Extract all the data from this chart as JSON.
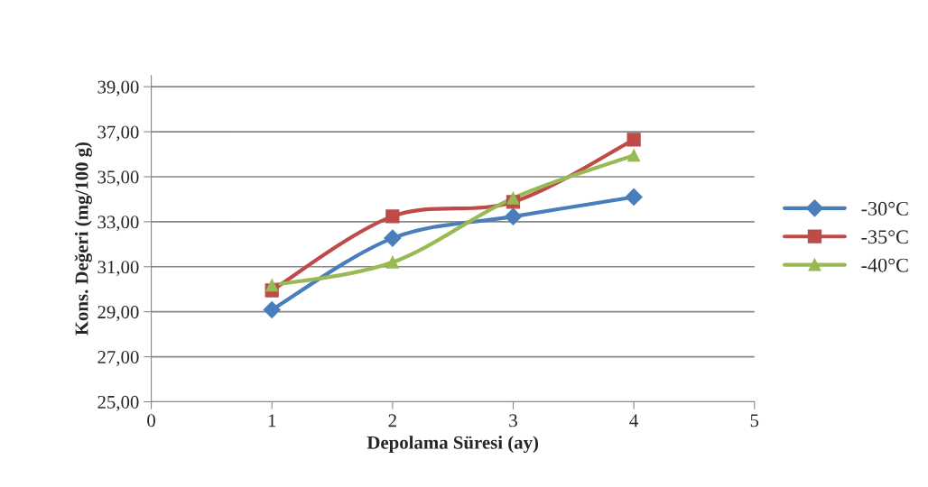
{
  "chart_data": {
    "type": "line",
    "xlabel": "Depolama Süresi (ay)",
    "ylabel": "Kons. Değeri (mg/100 g)",
    "x": [
      1,
      2,
      3,
      4
    ],
    "series": [
      {
        "name": "-30°C",
        "color": "#4a7ebb",
        "marker": "diamond",
        "values": [
          29.09,
          32.27,
          33.23,
          34.1
        ]
      },
      {
        "name": "-35°C",
        "color": "#be4b48",
        "marker": "square",
        "values": [
          29.95,
          33.24,
          33.88,
          36.65
        ]
      },
      {
        "name": "-40°C",
        "color": "#98b954",
        "marker": "triangle",
        "values": [
          30.18,
          31.2,
          34.05,
          35.95
        ]
      }
    ],
    "xlim": [
      0,
      5
    ],
    "xticks": [
      0,
      1,
      2,
      3,
      4,
      5
    ],
    "ylim": [
      25,
      39.5
    ],
    "yticks": [
      {
        "value": 25,
        "label": "25,00"
      },
      {
        "value": 27,
        "label": "27,00"
      },
      {
        "value": 29,
        "label": "29,00"
      },
      {
        "value": 31,
        "label": "31,00"
      },
      {
        "value": 33,
        "label": "33,00"
      },
      {
        "value": 35,
        "label": "35,00"
      },
      {
        "value": 37,
        "label": "37,00"
      },
      {
        "value": 39,
        "label": "39,00"
      }
    ],
    "grid": "y",
    "legend": "right",
    "line_style": "solid"
  }
}
